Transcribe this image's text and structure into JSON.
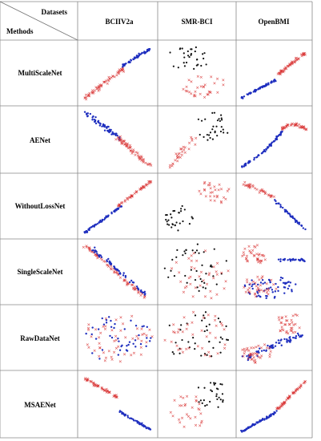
{
  "header": {
    "datasets_label": "Datasets",
    "methods_label": "Methods"
  },
  "datasets": [
    "BCIIV2a",
    "SMR-BCI",
    "OpenBMI"
  ],
  "methods": [
    "MultiScaleNet",
    "AENet",
    "WithoutLossNet",
    "SingleScaleNet",
    "RawDataNet",
    "MSAENet"
  ],
  "colors": {
    "class_a": "#d93636",
    "class_b": "#1f2fbf",
    "class_c": "#111111",
    "grid": "#888888"
  }
}
